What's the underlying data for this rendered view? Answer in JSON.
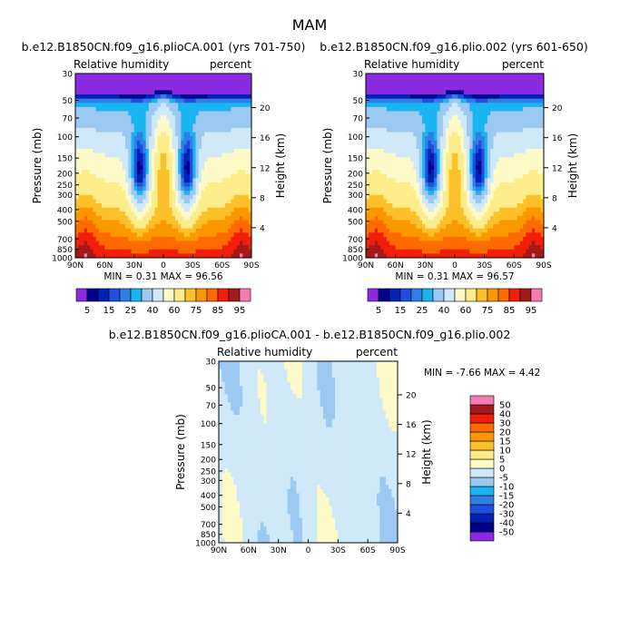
{
  "main_title": "MAM",
  "pressure_ticks": [
    30,
    50,
    70,
    100,
    150,
    200,
    250,
    300,
    400,
    500,
    700,
    850,
    1000
  ],
  "height_ticks": [
    4,
    8,
    12,
    16,
    20
  ],
  "lat_ticks": [
    "90N",
    "60N",
    "30N",
    "0",
    "30S",
    "60S",
    "90S"
  ],
  "chart_data": [
    {
      "type": "heatmap",
      "panel": "top-left",
      "title": "b.e12.B1850CN.f09_g16.plioCA.001 (yrs 701-750)",
      "variable": "Relative humidity",
      "units": "percent",
      "ylabel": "Pressure (mb)",
      "ylabel_right": "Height (km)",
      "xlim": [
        "90N",
        "90S"
      ],
      "ylim": [
        1000,
        30
      ],
      "stats": "MIN =   0.31   MAX =  96.56",
      "levels": [
        5,
        10,
        15,
        20,
        25,
        30,
        40,
        50,
        60,
        70,
        75,
        80,
        85,
        90,
        95
      ],
      "label_levels": [
        "5",
        "15",
        "25",
        "40",
        "60",
        "75",
        "85",
        "95"
      ],
      "colors": [
        "#8a2be2",
        "#00008b",
        "#0022b4",
        "#1f4fe0",
        "#2f7fe6",
        "#1ab4f0",
        "#9cc9f1",
        "#cfe9f8",
        "#fdfac8",
        "#fdec8a",
        "#fcc02a",
        "#fb9800",
        "#fd6a00",
        "#f21e0c",
        "#a31a1a",
        "#f77ab4"
      ],
      "min": 0.31,
      "max": 96.56
    },
    {
      "type": "heatmap",
      "panel": "top-right",
      "title": "b.e12.B1850CN.f09_g16.plio.002 (yrs 601-650)",
      "variable": "Relative humidity",
      "units": "percent",
      "ylabel": "Pressure (mb)",
      "ylabel_right": "Height (km)",
      "xlim": [
        "90N",
        "90S"
      ],
      "ylim": [
        1000,
        30
      ],
      "stats": "MIN =   0.31   MAX =  96.57",
      "levels": [
        5,
        10,
        15,
        20,
        25,
        30,
        40,
        50,
        60,
        70,
        75,
        80,
        85,
        90,
        95
      ],
      "label_levels": [
        "5",
        "15",
        "25",
        "40",
        "60",
        "75",
        "85",
        "95"
      ],
      "colors": [
        "#8a2be2",
        "#00008b",
        "#0022b4",
        "#1f4fe0",
        "#2f7fe6",
        "#1ab4f0",
        "#9cc9f1",
        "#cfe9f8",
        "#fdfac8",
        "#fdec8a",
        "#fcc02a",
        "#fb9800",
        "#fd6a00",
        "#f21e0c",
        "#a31a1a",
        "#f77ab4"
      ],
      "min": 0.31,
      "max": 96.57
    },
    {
      "type": "heatmap",
      "panel": "bottom",
      "title": "b.e12.B1850CN.f09_g16.plioCA.001 - b.e12.B1850CN.f09_g16.plio.002",
      "variable": "Relative humidity",
      "units": "percent",
      "ylabel": "Pressure (mb)",
      "ylabel_right": "Height (km)",
      "xlim": [
        "90N",
        "90S"
      ],
      "ylim": [
        1000,
        30
      ],
      "stats": "MIN =  -7.66   MAX =   4.42",
      "levels": [
        -50,
        -40,
        -30,
        -20,
        -15,
        -10,
        -5,
        0,
        5,
        10,
        15,
        20,
        30,
        40,
        50
      ],
      "label_levels": [
        "-50",
        "-40",
        "-30",
        "-20",
        "-15",
        "-10",
        "-5",
        "0",
        "5",
        "10",
        "15",
        "20",
        "30",
        "40",
        "50"
      ],
      "colors": [
        "#8a2be2",
        "#00008b",
        "#0022b4",
        "#1f4fe0",
        "#2f7fe6",
        "#1ab4f0",
        "#9cc9f1",
        "#cfe9f8",
        "#fdfac8",
        "#fdec8a",
        "#fcc02a",
        "#fb9800",
        "#fd6a00",
        "#f21e0c",
        "#a31a1a",
        "#f77ab4"
      ],
      "min": -7.66,
      "max": 4.42
    }
  ]
}
